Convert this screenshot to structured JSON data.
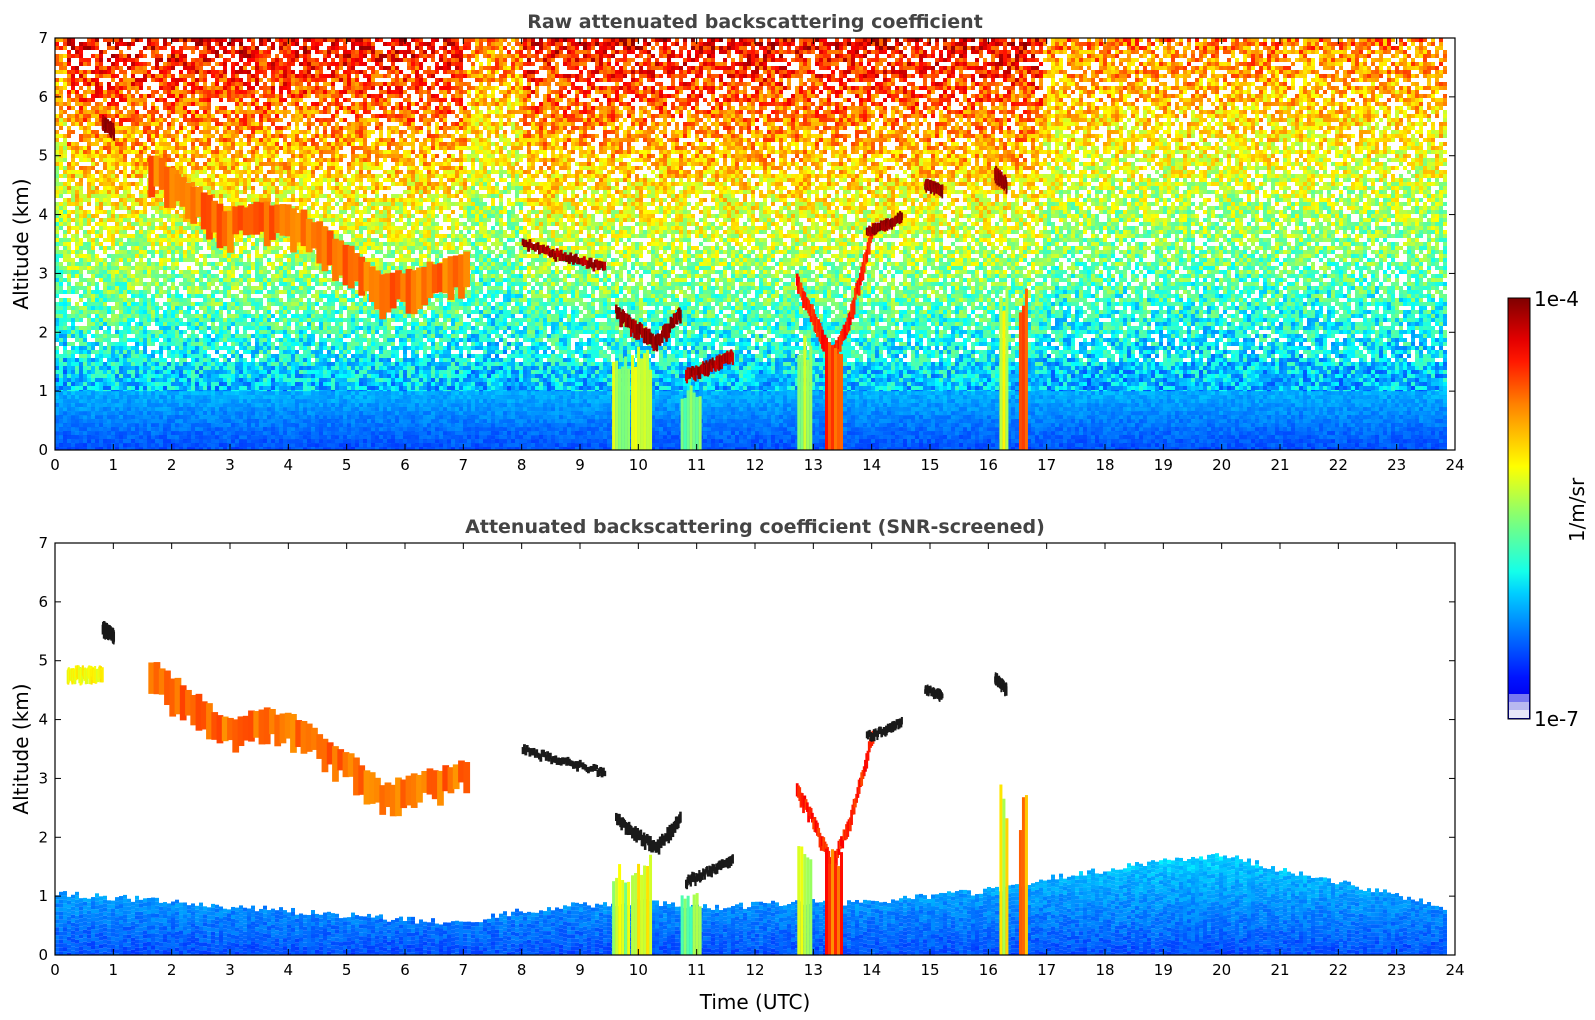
{
  "chart_data": [
    {
      "type": "heatmap",
      "title": "Raw attenuated backscattering coefficient",
      "xlabel": "",
      "ylabel": "Altitude (km)",
      "xlim": [
        0,
        24
      ],
      "ylim": [
        0,
        7
      ],
      "xticks": [
        "0",
        "1",
        "2",
        "3",
        "4",
        "5",
        "6",
        "7",
        "8",
        "9",
        "10",
        "11",
        "12",
        "13",
        "14",
        "15",
        "16",
        "17",
        "18",
        "19",
        "20",
        "21",
        "22",
        "23",
        "24"
      ],
      "yticks": [
        "0",
        "1",
        "2",
        "3",
        "4",
        "5",
        "6",
        "7"
      ],
      "data_end_time": 23.8,
      "background_noise": {
        "rises_with_altitude": true,
        "noisier_periods": [
          [
            0.2,
            7.0
          ],
          [
            8.0,
            16.9
          ]
        ]
      },
      "features": [
        {
          "kind": "cloud_streak",
          "x": [
            1.6,
            2.0,
            2.4,
            2.9,
            3.5,
            4.2,
            5.0,
            5.6,
            6.3,
            7.0
          ],
          "y": [
            4.7,
            4.4,
            4.1,
            3.7,
            3.9,
            3.7,
            3.1,
            2.6,
            2.8,
            3.0
          ],
          "thickness_km": 0.7,
          "level": 0.78
        },
        {
          "kind": "cloud_streak",
          "x": [
            0.8,
            1.0
          ],
          "y": [
            5.55,
            5.4
          ],
          "thickness_km": 0.2,
          "level": 0.98
        },
        {
          "kind": "cloud_streak",
          "x": [
            8.0,
            8.6,
            9.0,
            9.4
          ],
          "y": [
            3.5,
            3.3,
            3.2,
            3.1
          ],
          "thickness_km": 0.15,
          "level": 0.97
        },
        {
          "kind": "cloud_streak",
          "x": [
            9.6,
            10.0,
            10.3,
            10.7
          ],
          "y": [
            2.3,
            2.0,
            1.8,
            2.3
          ],
          "thickness_km": 0.25,
          "level": 0.98
        },
        {
          "kind": "cloud_streak",
          "x": [
            10.8,
            11.2,
            11.6
          ],
          "y": [
            1.25,
            1.4,
            1.6
          ],
          "thickness_km": 0.2,
          "level": 0.96
        },
        {
          "kind": "cloud_streak",
          "x": [
            12.7,
            13.0,
            13.3,
            13.6,
            14.0
          ],
          "y": [
            2.8,
            2.2,
            1.5,
            2.2,
            3.7
          ],
          "thickness_km": 0.3,
          "level": 0.85
        },
        {
          "kind": "cloud_streak",
          "x": [
            13.9,
            14.2,
            14.5
          ],
          "y": [
            3.7,
            3.8,
            3.95
          ],
          "thickness_km": 0.15,
          "level": 0.98
        },
        {
          "kind": "cloud_streak",
          "x": [
            14.9,
            15.2
          ],
          "y": [
            4.5,
            4.4
          ],
          "thickness_km": 0.15,
          "level": 0.98
        },
        {
          "kind": "cloud_streak",
          "x": [
            16.1,
            16.3
          ],
          "y": [
            4.7,
            4.5
          ],
          "thickness_km": 0.2,
          "level": 0.98
        },
        {
          "kind": "precip_column",
          "x": 9.7,
          "y": [
            0,
            1.6
          ],
          "width_h": 0.3,
          "level": 0.55
        },
        {
          "kind": "precip_column",
          "x": 10.05,
          "y": [
            0,
            1.8
          ],
          "width_h": 0.35,
          "level": 0.6
        },
        {
          "kind": "precip_column",
          "x": 10.9,
          "y": [
            0,
            1.1
          ],
          "width_h": 0.35,
          "level": 0.5
        },
        {
          "kind": "precip_column",
          "x": 12.85,
          "y": [
            0,
            2.0
          ],
          "width_h": 0.25,
          "level": 0.55
        },
        {
          "kind": "precip_column",
          "x": 13.35,
          "y": [
            0,
            2.0
          ],
          "width_h": 0.3,
          "level": 0.82
        },
        {
          "kind": "precip_column",
          "x": 16.25,
          "y": [
            0,
            2.9
          ],
          "width_h": 0.12,
          "level": 0.6
        },
        {
          "kind": "precip_column",
          "x": 16.6,
          "y": [
            0,
            2.8
          ],
          "width_h": 0.15,
          "level": 0.75
        }
      ]
    },
    {
      "type": "heatmap",
      "title": "Attenuated backscattering coefficient (SNR-screened)",
      "xlabel": "Time (UTC)",
      "ylabel": "Altitude (km)",
      "xlim": [
        0,
        24
      ],
      "ylim": [
        0,
        7
      ],
      "xticks": [
        "0",
        "1",
        "2",
        "3",
        "4",
        "5",
        "6",
        "7",
        "8",
        "9",
        "10",
        "11",
        "12",
        "13",
        "14",
        "15",
        "16",
        "17",
        "18",
        "19",
        "20",
        "21",
        "22",
        "23",
        "24"
      ],
      "yticks": [
        "0",
        "1",
        "2",
        "3",
        "4",
        "5",
        "6",
        "7"
      ],
      "data_end_time": 23.8,
      "boundary_layer_top": {
        "x": [
          0,
          2,
          4,
          6,
          7,
          8,
          9,
          10,
          11,
          12,
          13,
          14,
          15,
          16,
          17,
          18,
          19,
          20,
          21,
          22,
          23,
          23.8
        ],
        "y": [
          1.05,
          0.9,
          0.75,
          0.6,
          0.55,
          0.75,
          0.85,
          0.9,
          0.8,
          0.85,
          0.9,
          0.9,
          1.0,
          1.1,
          1.3,
          1.45,
          1.6,
          1.7,
          1.45,
          1.25,
          1.0,
          0.8
        ]
      },
      "features": [
        {
          "kind": "cloud_streak",
          "x": [
            1.6,
            2.0,
            2.4,
            2.9,
            3.5,
            4.2,
            5.0,
            5.6,
            6.3,
            7.0
          ],
          "y": [
            4.7,
            4.4,
            4.1,
            3.7,
            3.9,
            3.7,
            3.1,
            2.6,
            2.8,
            3.0
          ],
          "thickness_km": 0.6,
          "level": 0.78
        },
        {
          "kind": "cloud_streak",
          "x": [
            0.8,
            1.0
          ],
          "y": [
            5.55,
            5.4
          ],
          "thickness_km": 0.2,
          "level": 1.0
        },
        {
          "kind": "cloud_streak",
          "x": [
            8.0,
            8.6,
            9.0,
            9.4
          ],
          "y": [
            3.5,
            3.3,
            3.2,
            3.1
          ],
          "thickness_km": 0.12,
          "level": 1.0
        },
        {
          "kind": "cloud_streak",
          "x": [
            9.6,
            10.0,
            10.3,
            10.7
          ],
          "y": [
            2.3,
            2.0,
            1.8,
            2.3
          ],
          "thickness_km": 0.2,
          "level": 1.0
        },
        {
          "kind": "cloud_streak",
          "x": [
            10.8,
            11.2,
            11.6
          ],
          "y": [
            1.25,
            1.4,
            1.6
          ],
          "thickness_km": 0.15,
          "level": 1.0
        },
        {
          "kind": "cloud_streak",
          "x": [
            12.7,
            13.0,
            13.3,
            13.6,
            14.0
          ],
          "y": [
            2.8,
            2.2,
            1.5,
            2.2,
            3.7
          ],
          "thickness_km": 0.25,
          "level": 0.85
        },
        {
          "kind": "cloud_streak",
          "x": [
            13.9,
            14.2,
            14.5
          ],
          "y": [
            3.7,
            3.8,
            3.95
          ],
          "thickness_km": 0.12,
          "level": 1.0
        },
        {
          "kind": "cloud_streak",
          "x": [
            14.9,
            15.2
          ],
          "y": [
            4.5,
            4.4
          ],
          "thickness_km": 0.12,
          "level": 1.0
        },
        {
          "kind": "cloud_streak",
          "x": [
            16.1,
            16.3
          ],
          "y": [
            4.7,
            4.5
          ],
          "thickness_km": 0.15,
          "level": 1.0
        },
        {
          "kind": "cloud_streak",
          "x": [
            0.2,
            0.8
          ],
          "y": [
            4.75,
            4.75
          ],
          "thickness_km": 0.25,
          "level": 0.62
        },
        {
          "kind": "precip_column",
          "x": 9.7,
          "y": [
            0,
            1.6
          ],
          "width_h": 0.3,
          "level": 0.55
        },
        {
          "kind": "precip_column",
          "x": 10.05,
          "y": [
            0,
            1.8
          ],
          "width_h": 0.35,
          "level": 0.6
        },
        {
          "kind": "precip_column",
          "x": 10.9,
          "y": [
            0,
            1.1
          ],
          "width_h": 0.35,
          "level": 0.5
        },
        {
          "kind": "precip_column",
          "x": 12.85,
          "y": [
            0,
            2.0
          ],
          "width_h": 0.25,
          "level": 0.55
        },
        {
          "kind": "precip_column",
          "x": 13.35,
          "y": [
            0,
            2.0
          ],
          "width_h": 0.3,
          "level": 0.82
        },
        {
          "kind": "precip_column",
          "x": 16.25,
          "y": [
            0,
            2.9
          ],
          "width_h": 0.12,
          "level": 0.6
        },
        {
          "kind": "precip_column",
          "x": 16.6,
          "y": [
            0,
            2.8
          ],
          "width_h": 0.15,
          "level": 0.75
        }
      ]
    }
  ],
  "colorbar": {
    "label": "1/m/sr",
    "max_label": "1e-4",
    "min_label": "1e-7",
    "range": [
      1e-07,
      0.0001
    ],
    "scale": "log",
    "colormap": "jet",
    "low_end_colors": [
      "#e8e8f8",
      "#b8b8f0",
      "#7878f0"
    ]
  }
}
